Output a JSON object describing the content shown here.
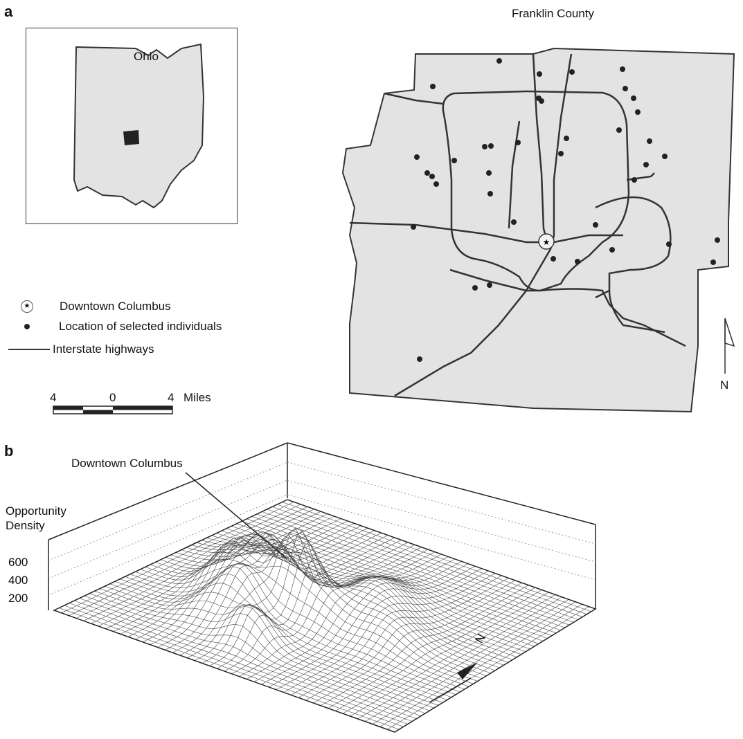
{
  "panel_a": {
    "letter": "a",
    "inset_state_label": "Ohio",
    "county_title": "Franklin County",
    "north_label": "N",
    "legend": {
      "downtown": "Downtown Columbus",
      "individuals": "Location of selected individuals",
      "highways": "Interstate highways"
    },
    "scale": {
      "left_tick": "4",
      "mid_tick": "0",
      "right_tick": "4",
      "unit": "Miles"
    }
  },
  "panel_b": {
    "letter": "b",
    "annotation": "Downtown Columbus",
    "axis_title_line1": "Opportunity",
    "axis_title_line2": "Density",
    "z_ticks": [
      "600",
      "400",
      "200"
    ],
    "north_label": "N"
  },
  "colors": {
    "land": "#e3e3e3",
    "stroke": "#333333",
    "county_fill": "#222222",
    "dot": "#222222"
  }
}
